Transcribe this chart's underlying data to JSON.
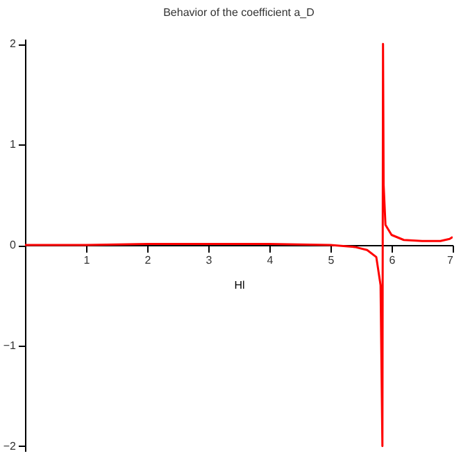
{
  "chart_data": {
    "type": "line",
    "title": "Behavior of the coefficient a_D",
    "xlabel": "Hl",
    "x": [
      0,
      1,
      2,
      3,
      4,
      5,
      5.4,
      5.6,
      5.75,
      5.82,
      5.85,
      5.86,
      5.87,
      5.9,
      6.0,
      6.2,
      6.5,
      6.8,
      6.95,
      7
    ],
    "series": [
      {
        "color": "#ff0000",
        "values": [
          0,
          0,
          0.01,
          0.01,
          0.01,
          0,
          -0.02,
          -0.05,
          -0.12,
          -0.4,
          -2,
          2,
          0.6,
          0.2,
          0.1,
          0.05,
          0.04,
          0.04,
          0.06,
          0.08
        ]
      }
    ],
    "xlim": [
      0,
      7
    ],
    "ylim": [
      -2.05,
      2.05
    ],
    "xticks": [
      1,
      2,
      3,
      4,
      5,
      6,
      7
    ],
    "yticks": [
      -2,
      -1,
      0,
      1,
      2
    ],
    "grid": false
  }
}
